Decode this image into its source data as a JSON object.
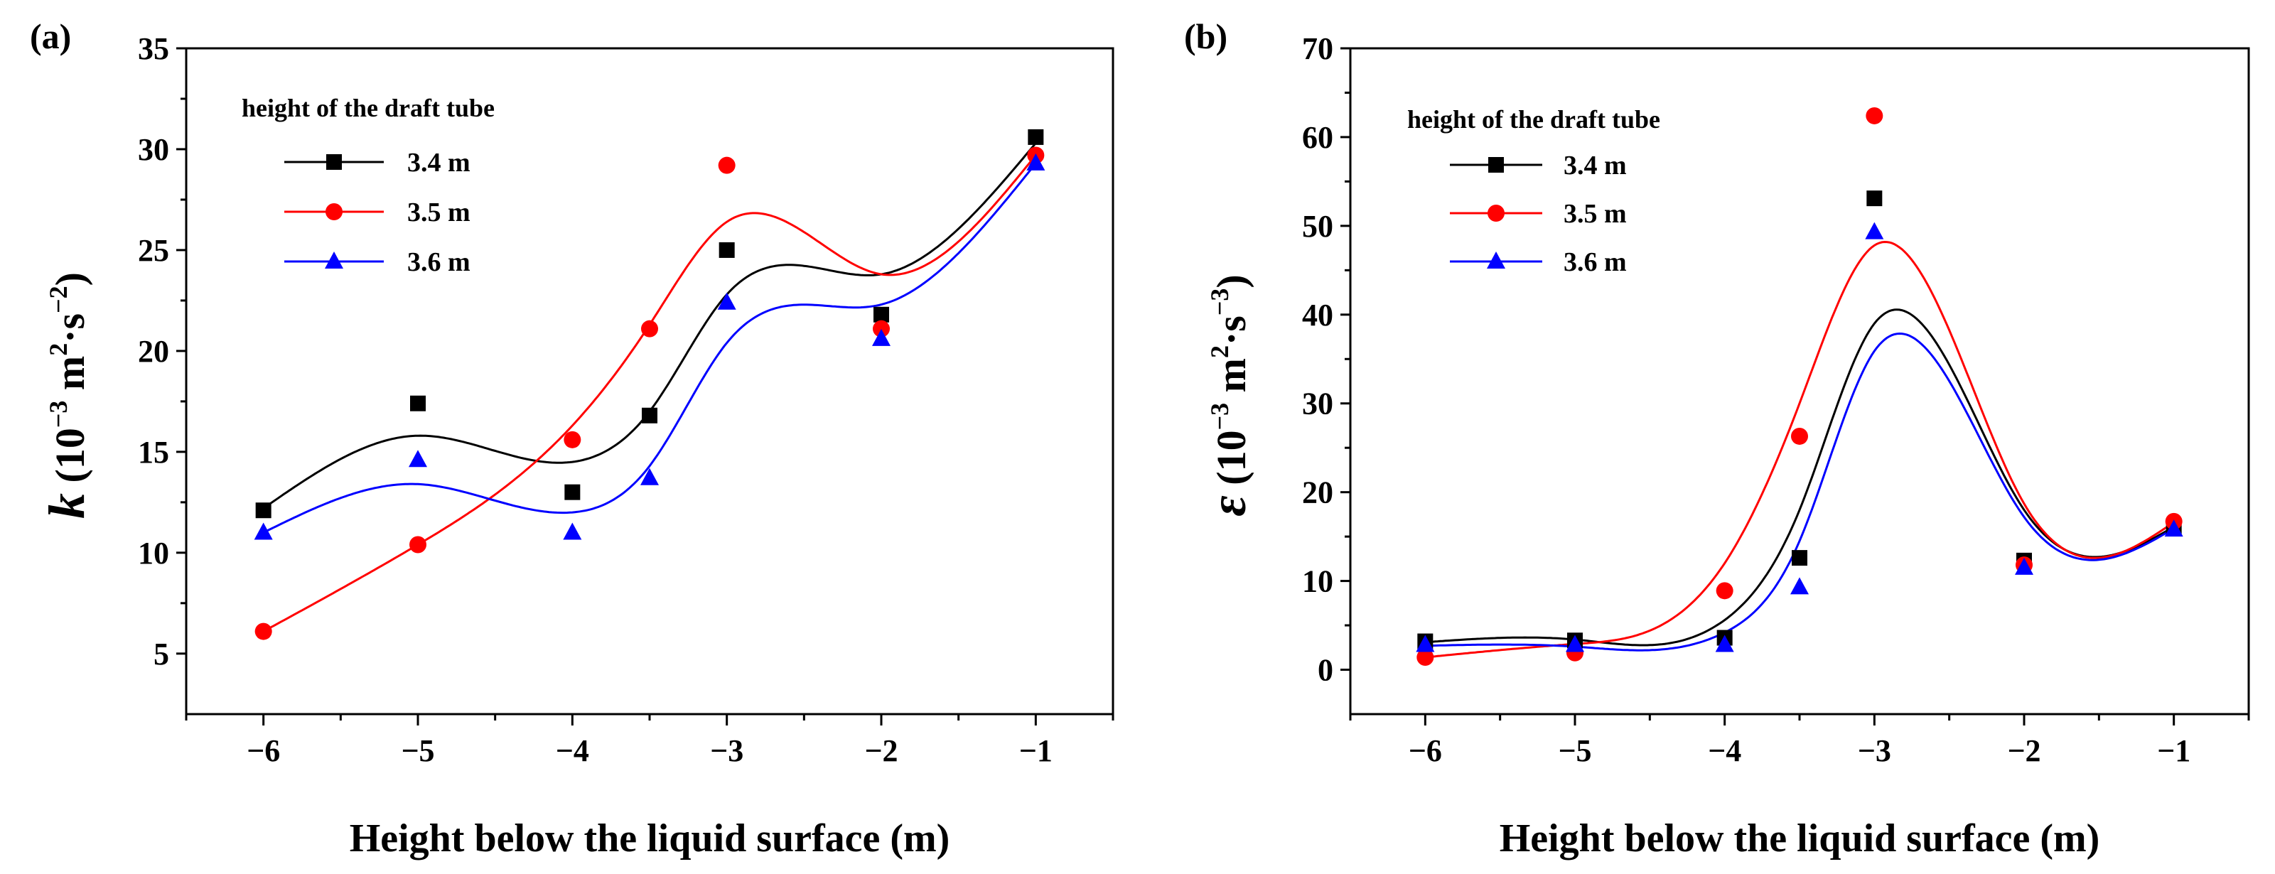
{
  "chart_data": [
    {
      "type": "scatter",
      "panel_label": "(a)",
      "xlabel": "Height below the liquid surface (m)",
      "ylabel_symbol": "k",
      "ylabel_unit_open": " (10",
      "ylabel_unit_exp1": "−3",
      "ylabel_unit_mid": " m",
      "ylabel_unit_exp2": "2",
      "ylabel_unit_mid2": "·s",
      "ylabel_unit_exp3": "−2",
      "ylabel_unit_close": ")",
      "xlim": [
        -6.5,
        -0.5
      ],
      "ylim": [
        2,
        35
      ],
      "xticks": [
        -6,
        -5,
        -4,
        -3,
        -2,
        -1
      ],
      "xtick_labels": [
        "−6",
        "−5",
        "−4",
        "−3",
        "−2",
        "−1"
      ],
      "yticks": [
        5,
        10,
        15,
        20,
        25,
        30,
        35
      ],
      "ytick_labels": [
        "5",
        "10",
        "15",
        "20",
        "25",
        "30",
        "35"
      ],
      "legend_title": "height of the draft tube",
      "legend_position": "top-left",
      "x": [
        -6,
        -5,
        -4,
        -3.5,
        -3,
        -2,
        -1
      ],
      "series": [
        {
          "name": "3.4 m",
          "color": "#000000",
          "marker": "square",
          "values": [
            12.1,
            17.4,
            13.0,
            16.8,
            25.0,
            21.8,
            30.6
          ],
          "fit": [
            12.2,
            15.8,
            14.5,
            17.0,
            22.8,
            23.8,
            30.3
          ]
        },
        {
          "name": "3.5 m",
          "color": "#ff0000",
          "marker": "circle",
          "values": [
            6.1,
            10.4,
            15.6,
            21.1,
            29.2,
            21.1,
            29.7
          ],
          "fit": [
            6.1,
            10.4,
            16.3,
            21.3,
            26.4,
            23.8,
            29.7
          ]
        },
        {
          "name": "3.6 m",
          "color": "#0000ff",
          "marker": "triangle",
          "values": [
            11.0,
            14.6,
            11.0,
            13.7,
            22.4,
            20.6,
            29.3
          ],
          "fit": [
            11.0,
            13.4,
            12.0,
            14.3,
            20.4,
            22.3,
            29.3
          ]
        }
      ]
    },
    {
      "type": "scatter",
      "panel_label": "(b)",
      "xlabel": "Height below the liquid surface (m)",
      "ylabel_symbol": "ε",
      "ylabel_unit_open": " (10",
      "ylabel_unit_exp1": "−3",
      "ylabel_unit_mid": " m",
      "ylabel_unit_exp2": "2",
      "ylabel_unit_mid2": "·s",
      "ylabel_unit_exp3": "−3",
      "ylabel_unit_close": ")",
      "xlim": [
        -6.5,
        -0.5
      ],
      "ylim": [
        -5,
        70
      ],
      "xticks": [
        -6,
        -5,
        -4,
        -3,
        -2,
        -1
      ],
      "xtick_labels": [
        "−6",
        "−5",
        "−4",
        "−3",
        "−2",
        "−1"
      ],
      "yticks": [
        0,
        10,
        20,
        30,
        40,
        50,
        60,
        70
      ],
      "ytick_labels": [
        "0",
        "10",
        "20",
        "30",
        "40",
        "50",
        "60",
        "70"
      ],
      "legend_title": "height of the draft tube",
      "legend_position": "top-left",
      "x": [
        -6,
        -5,
        -4,
        -3.5,
        -3,
        -2,
        -1
      ],
      "series": [
        {
          "name": "3.4 m",
          "color": "#000000",
          "marker": "square",
          "values": [
            3.2,
            3.3,
            3.6,
            12.6,
            53.1,
            12.3,
            16.0
          ],
          "fit": [
            3.1,
            3.4,
            5.6,
            18.0,
            39.0,
            18.0,
            16.1
          ]
        },
        {
          "name": "3.5 m",
          "color": "#ff0000",
          "marker": "circle",
          "values": [
            1.4,
            1.9,
            8.9,
            26.3,
            62.4,
            11.8,
            16.7
          ],
          "fit": [
            1.4,
            2.9,
            12.0,
            30.0,
            47.8,
            18.7,
            16.6
          ]
        },
        {
          "name": "3.6 m",
          "color": "#0000ff",
          "marker": "triangle",
          "values": [
            2.8,
            2.8,
            2.8,
            9.3,
            49.3,
            11.5,
            15.8
          ],
          "fit": [
            2.7,
            2.6,
            4.2,
            14.5,
            35.9,
            17.2,
            15.9
          ]
        }
      ]
    }
  ]
}
